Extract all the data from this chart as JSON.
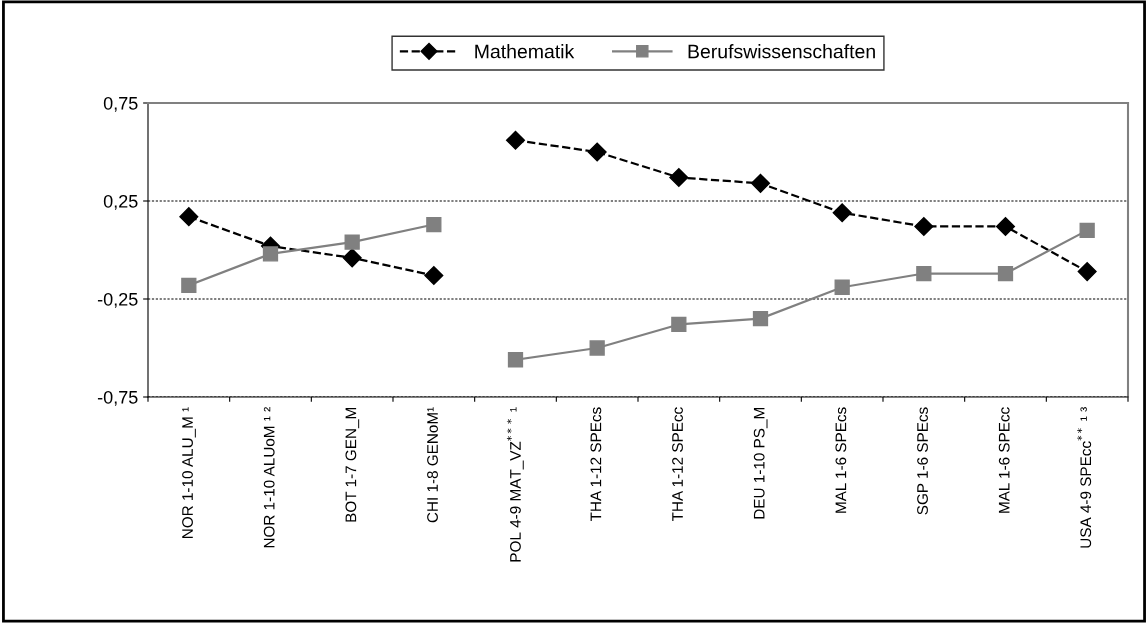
{
  "chart_data": {
    "type": "line",
    "categories": [
      "NOR 1-10 ALU_M ¹",
      "NOR 1-10 ALUoM ¹ ²",
      "BOT 1-7 GEN_M",
      "CHI 1-8 GENoM¹",
      "POL 4-9 MAT_VZ$^{***}$ ¹",
      "THA 1-12 SPEcs",
      "THA 1-12 SPEcc",
      "DEU 1-10 PS_M",
      "MAL 1-6 SPEcs",
      "SGP 1-6 SPEcs",
      "MAL 1-6 SPEcc",
      "USA 4-9 SPEcc$^{**}$ ¹ ³"
    ],
    "series": [
      {
        "name": "Mathematik",
        "color": "#000000",
        "marker": "diamond",
        "line_style": "dashed",
        "values": [
          0.17,
          0.02,
          -0.04,
          -0.13,
          null,
          null,
          null,
          null,
          null,
          null,
          null,
          null
        ]
      },
      {
        "color": "#000000",
        "marker": "diamond",
        "line_style": "dashed",
        "values": [
          null,
          null,
          null,
          null,
          0.56,
          0.5,
          0.37,
          0.34,
          0.19,
          0.12,
          0.12,
          -0.11
        ]
      },
      {
        "name": "Berufswissenschaften",
        "color": "#808080",
        "marker": "square",
        "line_style": "solid",
        "values": [
          -0.18,
          -0.02,
          0.04,
          0.13,
          null,
          null,
          null,
          null,
          null,
          null,
          null,
          null
        ]
      },
      {
        "color": "#808080",
        "marker": "square",
        "line_style": "solid",
        "values": [
          null,
          null,
          null,
          null,
          -0.56,
          -0.5,
          -0.38,
          -0.35,
          -0.19,
          -0.12,
          -0.12,
          0.1
        ]
      }
    ],
    "ylim": [
      -0.75,
      0.75
    ],
    "yticks": [
      {
        "value": -0.75,
        "label": "-0,75"
      },
      {
        "value": -0.25,
        "label": "-0,25"
      },
      {
        "value": 0.25,
        "label": "0,25"
      },
      {
        "value": 0.75,
        "label": "0,75"
      }
    ],
    "grid": "y",
    "legend": "top"
  }
}
